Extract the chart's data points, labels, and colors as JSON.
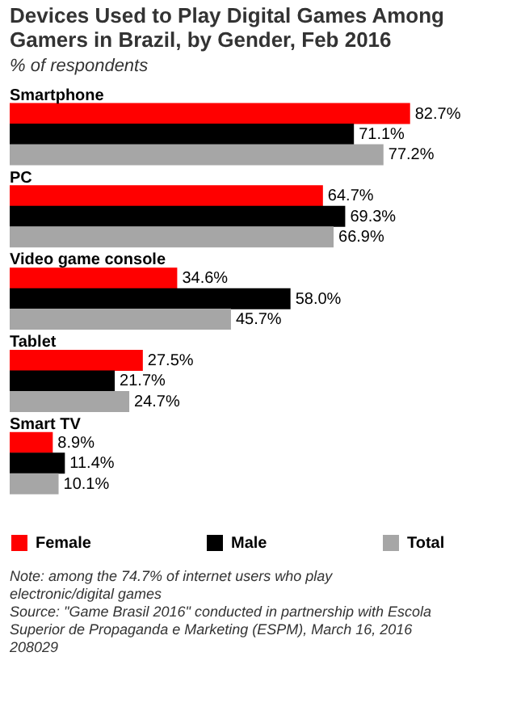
{
  "chart_data": {
    "type": "bar",
    "orientation": "horizontal",
    "title": "Devices Used to Play Digital Games Among Gamers in Brazil, by Gender, Feb 2016",
    "subtitle": "% of respondents",
    "categories": [
      "Smartphone",
      "PC",
      "Video game console",
      "Tablet",
      "Smart TV"
    ],
    "series": [
      {
        "name": "Female",
        "color": "#ff0000",
        "values": [
          82.7,
          64.7,
          34.6,
          27.5,
          8.9
        ],
        "value_labels": [
          "82.7%",
          "64.7%",
          "34.6%",
          "27.5%",
          "8.9%"
        ]
      },
      {
        "name": "Male",
        "color": "#000000",
        "values": [
          71.1,
          69.3,
          58.0,
          21.7,
          11.4
        ],
        "value_labels": [
          "71.1%",
          "69.3%",
          "58.0%",
          "21.7%",
          "11.4%"
        ]
      },
      {
        "name": "Total",
        "color": "#a6a6a6",
        "values": [
          77.2,
          66.9,
          45.7,
          24.7,
          10.1
        ],
        "value_labels": [
          "77.2%",
          "66.9%",
          "45.7%",
          "24.7%",
          "10.1%"
        ]
      }
    ],
    "legend": "bottom",
    "grid": false,
    "annotations": [
      "Note: among the 74.7% of internet users who play electronic/digital games",
      "Source: \"Game Brasil 2016\" conducted in partnership with Escola Superior de Propaganda e Marketing (ESPM), March 16, 2016",
      "208029"
    ]
  }
}
